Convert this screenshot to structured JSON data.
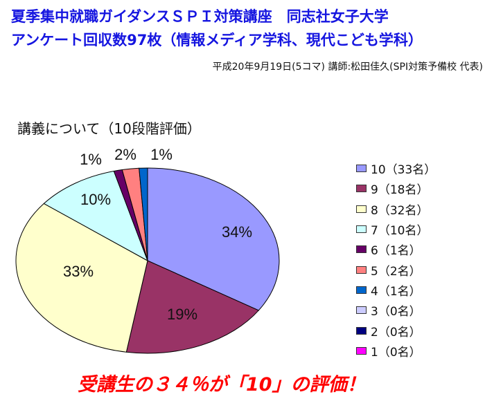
{
  "header": {
    "title_line1": "夏季集中就職ガイダンスＳＰＩ対策講座　同志社女子大学",
    "title_line2": "アンケート回収数97枚（情報メディア学科、現代こども学科）",
    "subtitle": "平成20年9月19日(5コマ)  講師:松田佳久(SPI対策予備校  代表)"
  },
  "conclusion": "受講生の３４％が「10」の評価！",
  "chart_data": {
    "type": "pie",
    "title": "講義について（10段階評価）",
    "legend_position": "right",
    "categories": [
      "10",
      "9",
      "8",
      "7",
      "6",
      "5",
      "4",
      "3",
      "2",
      "1"
    ],
    "counts": [
      33,
      18,
      32,
      10,
      1,
      2,
      1,
      0,
      0,
      0
    ],
    "values_percent": [
      34,
      19,
      33,
      10,
      1,
      2,
      1,
      0,
      0,
      0
    ],
    "data_labels": [
      "34%",
      "19%",
      "33%",
      "10%",
      "1%",
      "2%",
      "1%"
    ],
    "legend": [
      {
        "label": "10（33名）",
        "color": "#9999ff"
      },
      {
        "label": "9（18名）",
        "color": "#993366"
      },
      {
        "label": "8（32名）",
        "color": "#ffffcc"
      },
      {
        "label": "7（10名）",
        "color": "#ccffff"
      },
      {
        "label": "6（1名）",
        "color": "#660066"
      },
      {
        "label": "5（2名）",
        "color": "#ff8080"
      },
      {
        "label": "4（1名）",
        "color": "#0066cc"
      },
      {
        "label": "3（0名）",
        "color": "#ccccff"
      },
      {
        "label": "2（0名）",
        "color": "#000080"
      },
      {
        "label": "1（0名）",
        "color": "#ff00ff"
      }
    ]
  }
}
